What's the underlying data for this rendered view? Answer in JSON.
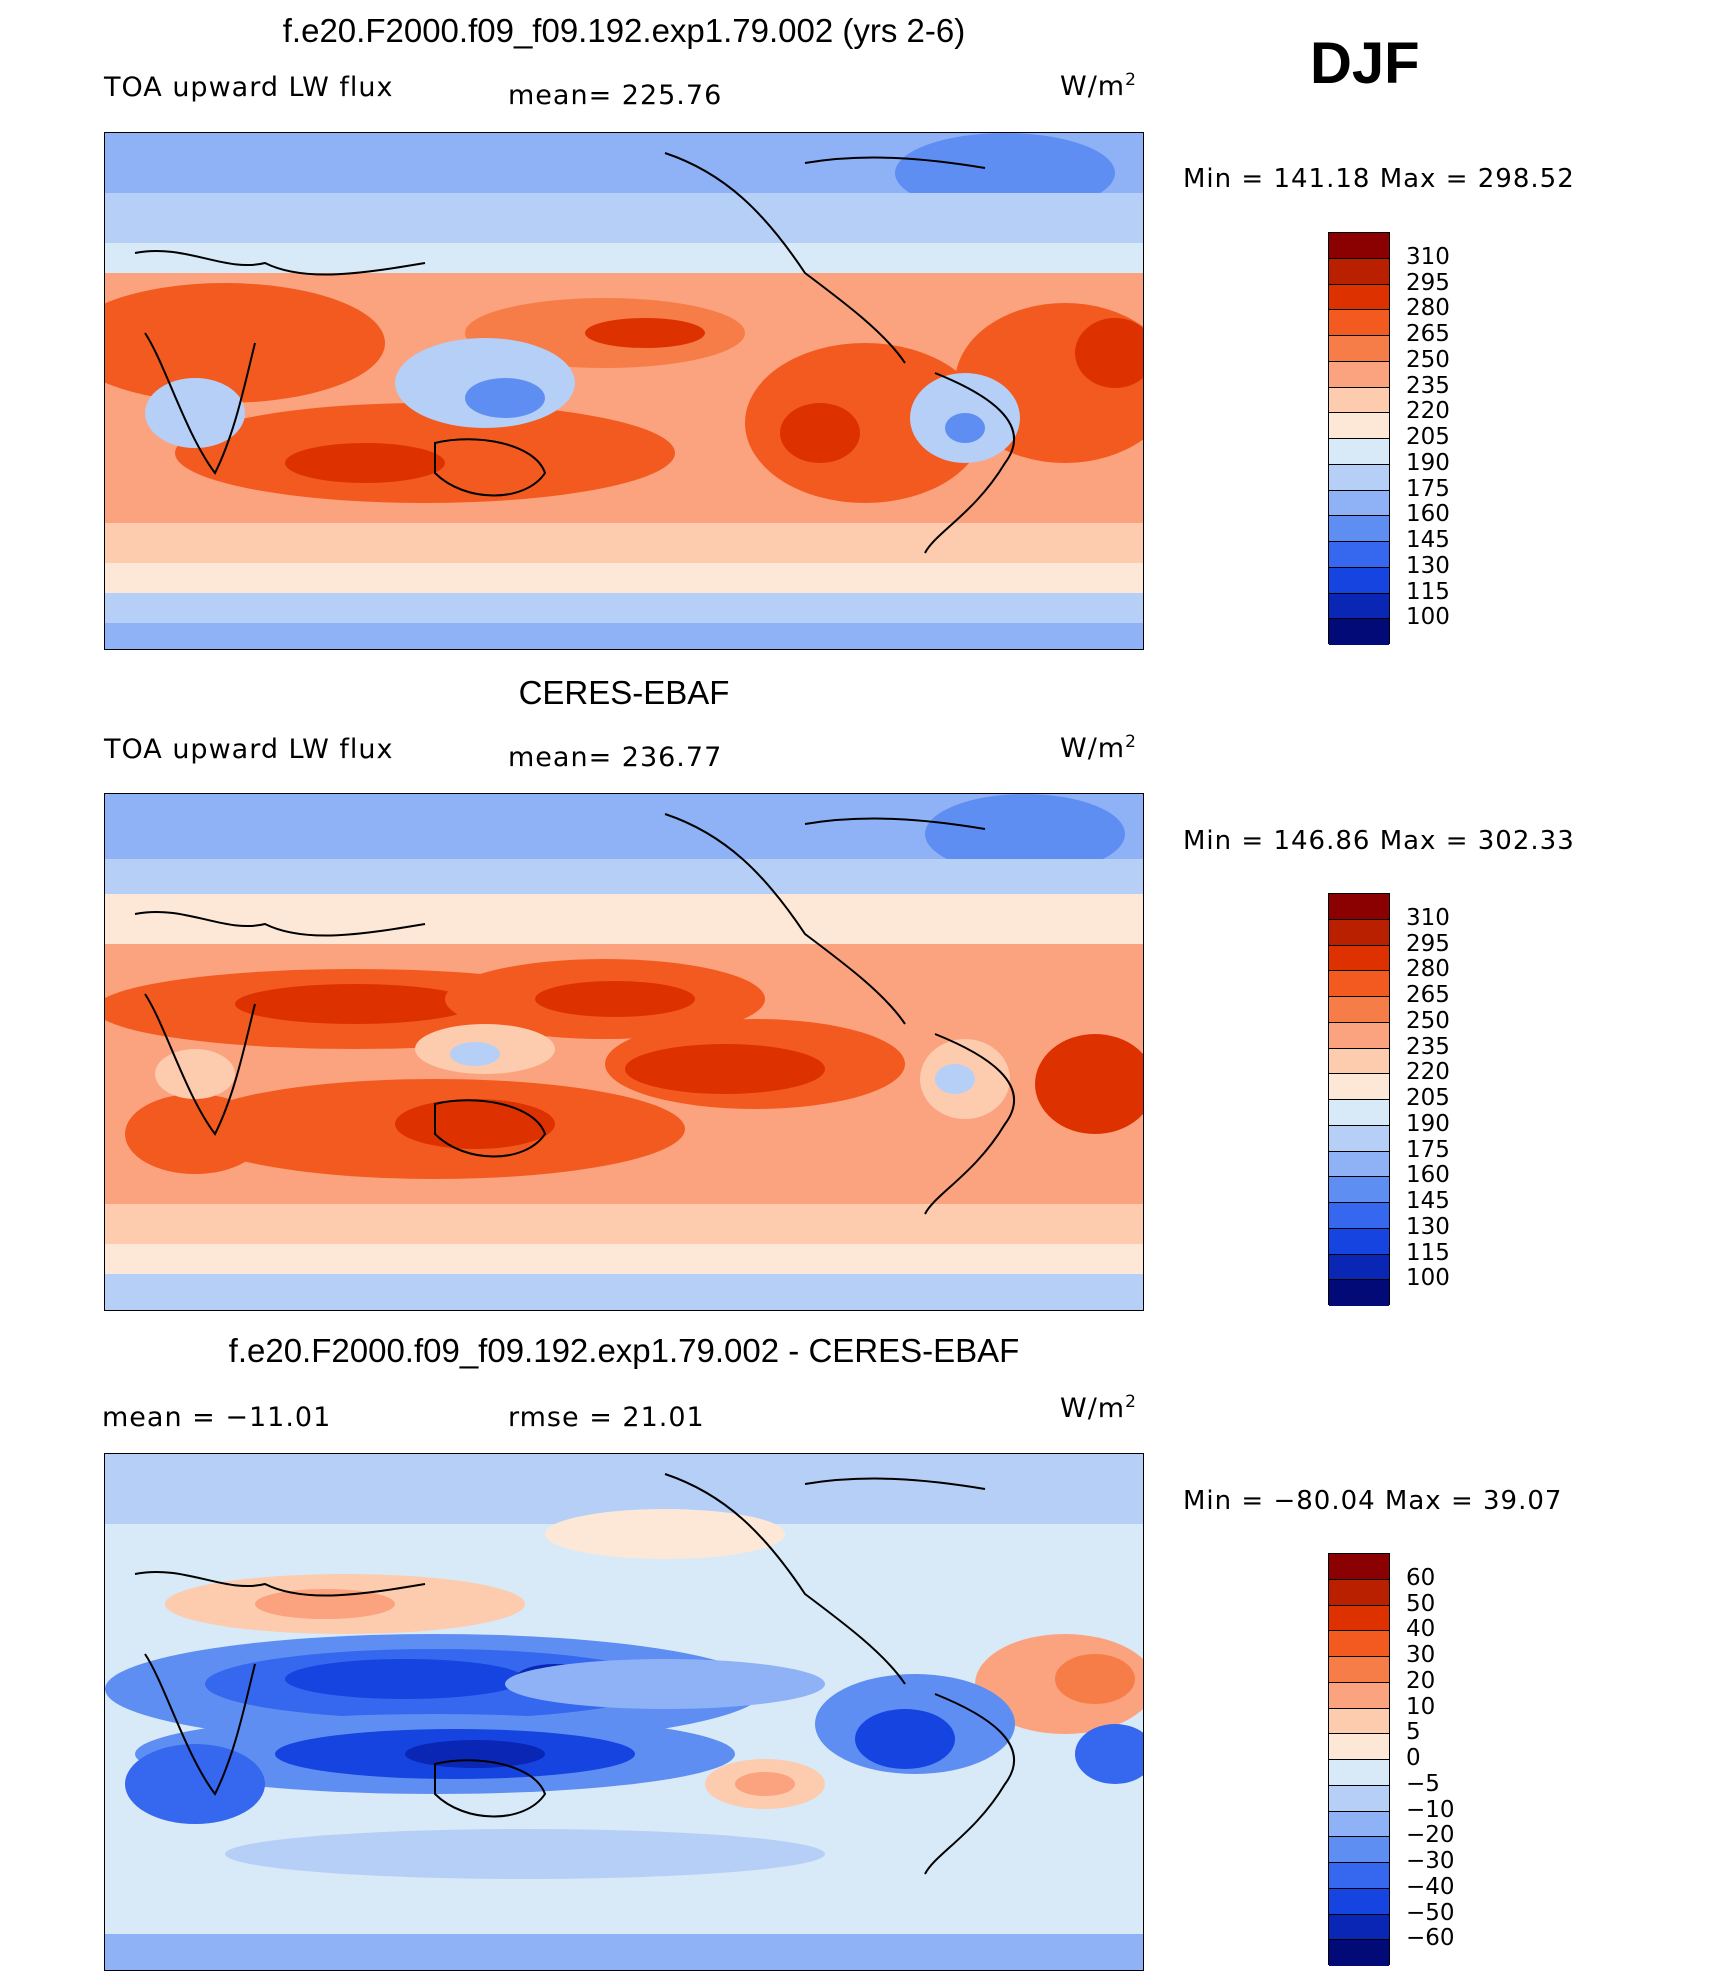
{
  "season": "DJF",
  "chart_data": [
    {
      "type": "heatmap",
      "title": "f.e20.F2000.f09_f09.192.exp1.79.002 (yrs 2-6)",
      "left_label": "TOA upward LW flux",
      "center_label": "mean=  225.76",
      "units": "W/m",
      "units_sup": "2",
      "min_max": "Min  =  141.18  Max  =  298.52",
      "mean": 225.76,
      "min": 141.18,
      "max": 298.52,
      "colorbar": {
        "levels": [
          "310",
          "295",
          "280",
          "265",
          "250",
          "235",
          "220",
          "205",
          "190",
          "175",
          "160",
          "145",
          "130",
          "115",
          "100"
        ],
        "colors": [
          "#8b0000",
          "#b82000",
          "#dd3200",
          "#f25a1f",
          "#f77d48",
          "#fba27e",
          "#fdcbae",
          "#fde8d8",
          "#d8eaf8",
          "#b5cff7",
          "#8fb2f7",
          "#5f8ef3",
          "#3567ef",
          "#1544e1",
          "#0a26b4",
          "#020a78"
        ]
      }
    },
    {
      "type": "heatmap",
      "title": "CERES-EBAF",
      "left_label": "TOA upward LW flux",
      "center_label": "mean=  236.77",
      "units": "W/m",
      "units_sup": "2",
      "min_max": "Min  =  146.86  Max  =  302.33",
      "mean": 236.77,
      "min": 146.86,
      "max": 302.33,
      "colorbar": {
        "levels": [
          "310",
          "295",
          "280",
          "265",
          "250",
          "235",
          "220",
          "205",
          "190",
          "175",
          "160",
          "145",
          "130",
          "115",
          "100"
        ],
        "colors": [
          "#8b0000",
          "#b82000",
          "#dd3200",
          "#f25a1f",
          "#f77d48",
          "#fba27e",
          "#fdcbae",
          "#fde8d8",
          "#d8eaf8",
          "#b5cff7",
          "#8fb2f7",
          "#5f8ef3",
          "#3567ef",
          "#1544e1",
          "#0a26b4",
          "#020a78"
        ]
      }
    },
    {
      "type": "heatmap",
      "title": "f.e20.F2000.f09_f09.192.exp1.79.002 - CERES-EBAF",
      "left_label": "mean  =  −11.01",
      "center_label": "rmse  =    21.01",
      "units": "W/m",
      "units_sup": "2",
      "min_max": "Min  =  −80.04  Max  =    39.07",
      "mean": -11.01,
      "rmse": 21.01,
      "min": -80.04,
      "max": 39.07,
      "colorbar": {
        "levels": [
          "60",
          "50",
          "40",
          "30",
          "20",
          "10",
          "5",
          "0",
          "−5",
          "−10",
          "−20",
          "−30",
          "−40",
          "−50",
          "−60"
        ],
        "colors": [
          "#8b0000",
          "#b82000",
          "#dd3200",
          "#f25a1f",
          "#f77d48",
          "#fba27e",
          "#fdcbae",
          "#fde8d8",
          "#d8eaf8",
          "#b5cff7",
          "#8fb2f7",
          "#5f8ef3",
          "#3567ef",
          "#1544e1",
          "#0a26b4",
          "#020a78"
        ]
      }
    }
  ]
}
